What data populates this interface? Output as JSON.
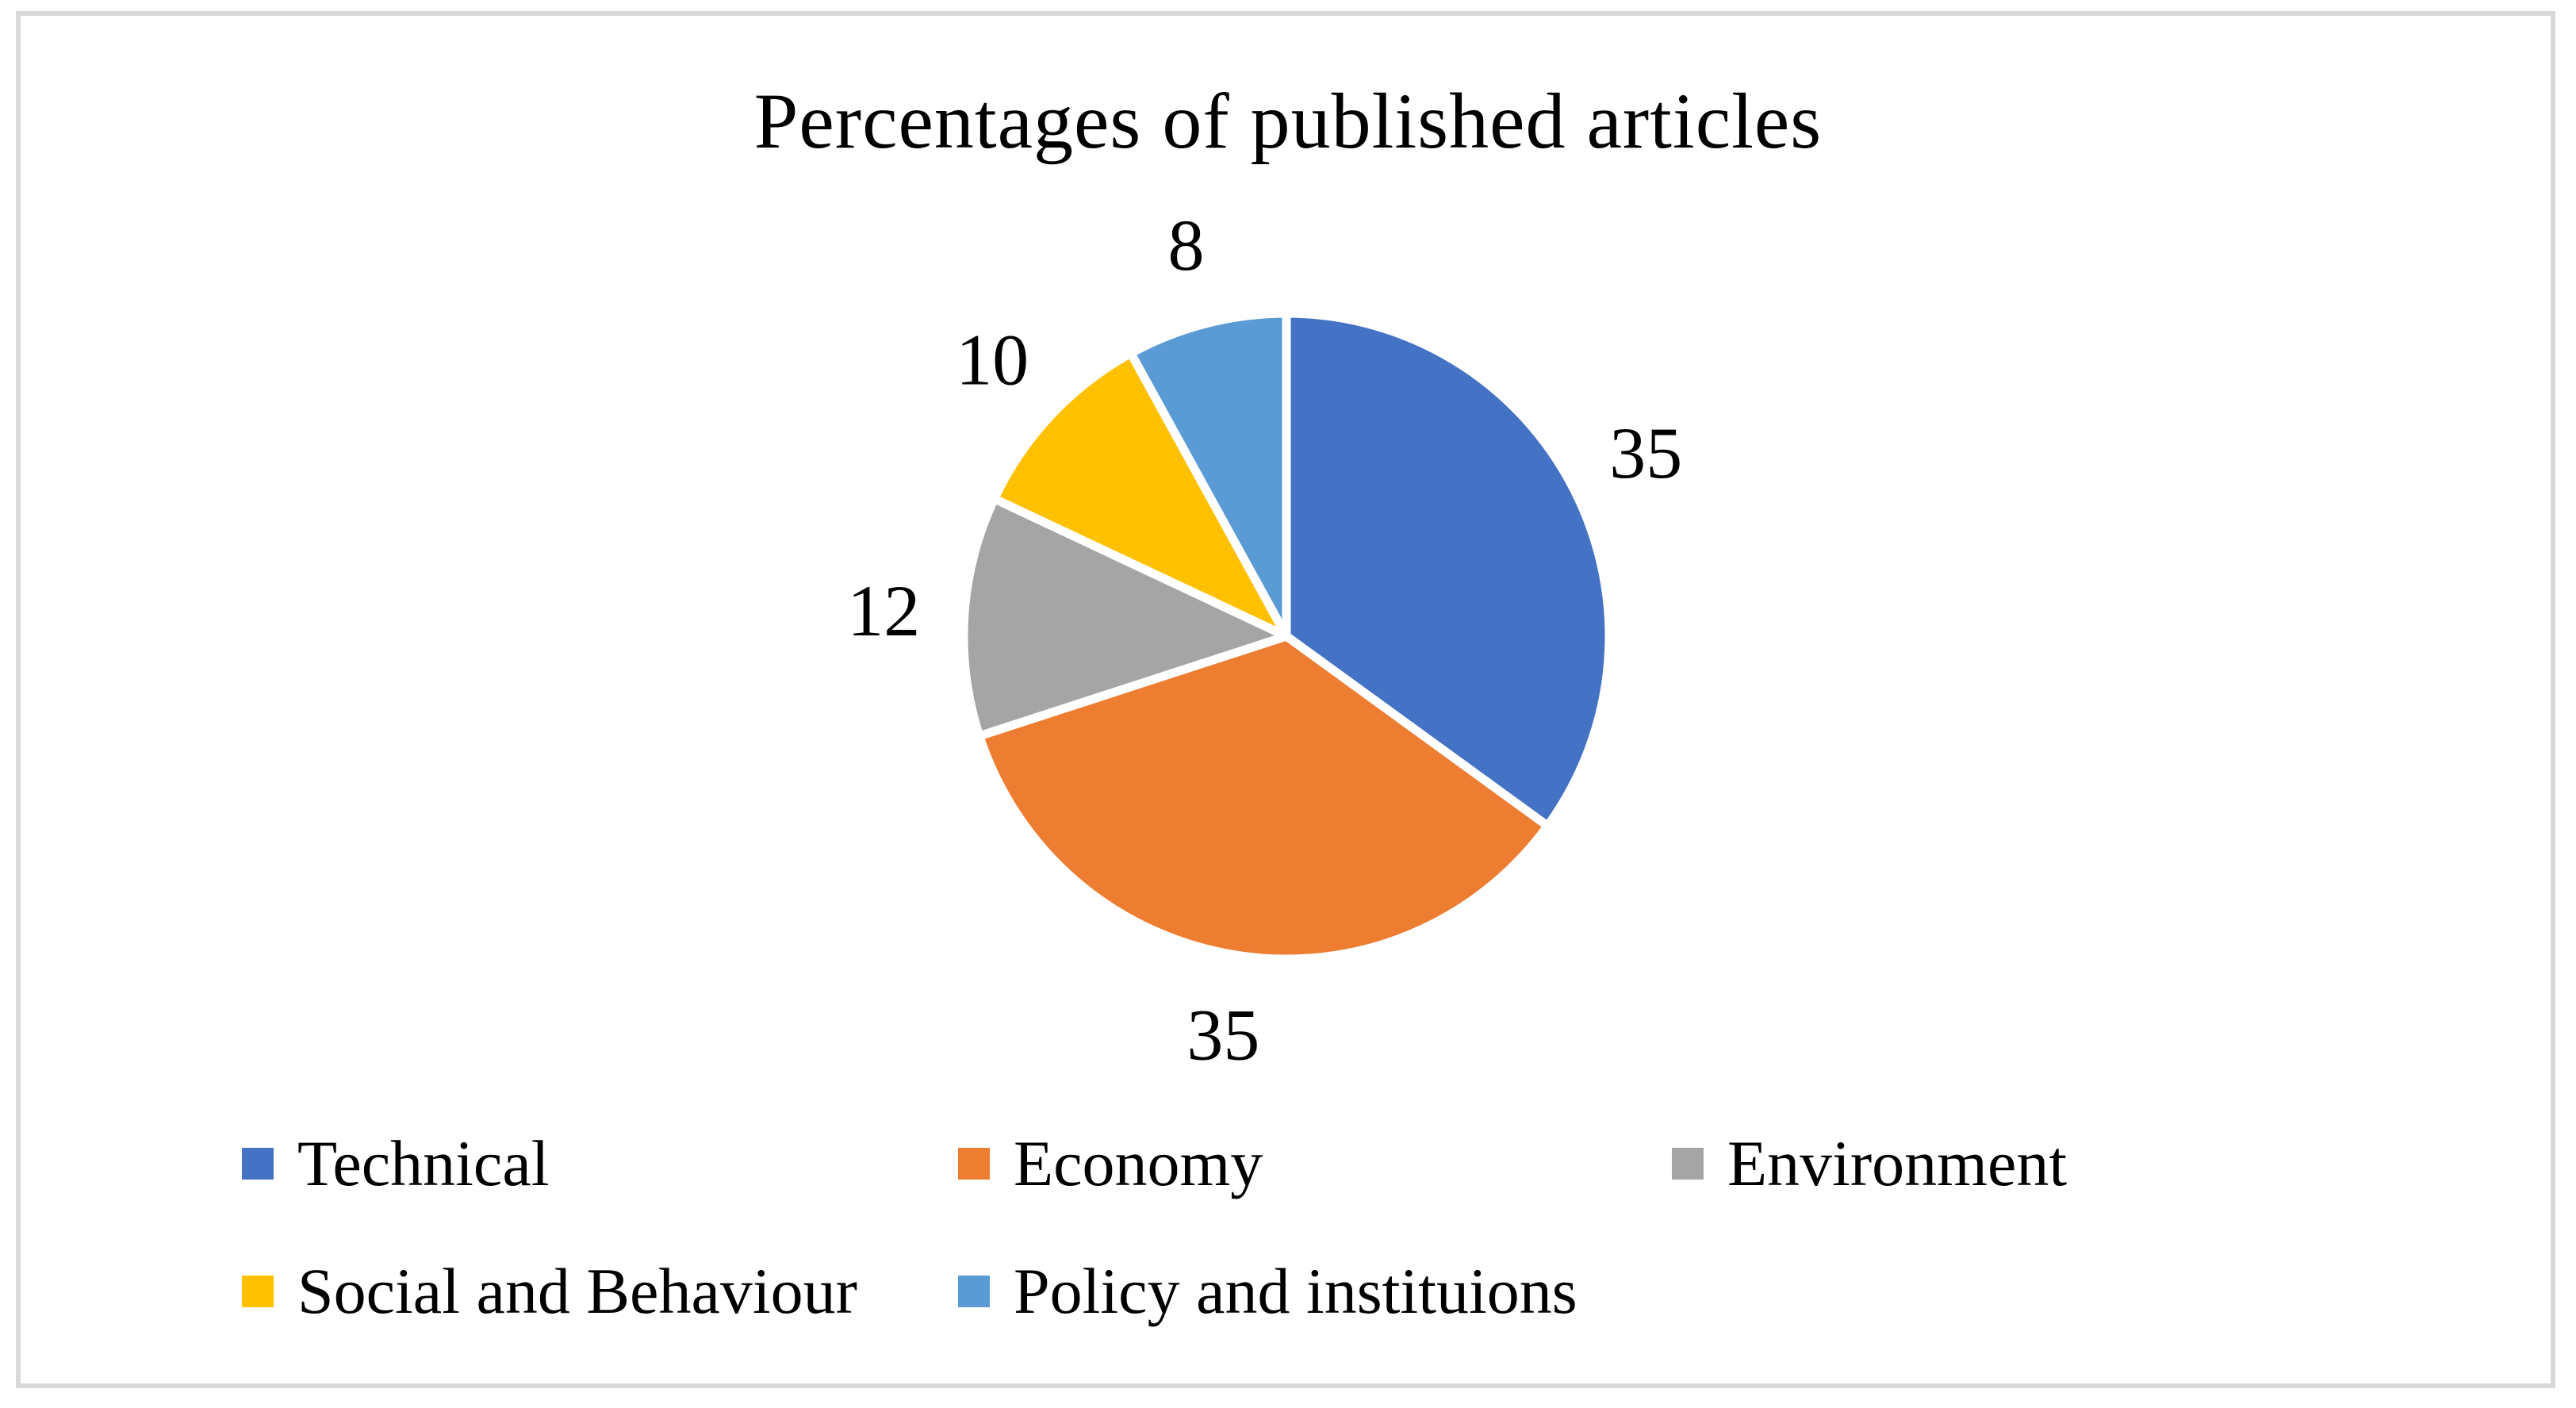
{
  "figure": {
    "background": "#ffffff",
    "frame_color": "#d9d9d9"
  },
  "chart_data": {
    "type": "pie",
    "title": "Percentages of published articles",
    "categories": [
      "Technical",
      "Economy",
      "Environment",
      "Social and Behaviour",
      "Policy and instituions"
    ],
    "values": [
      35,
      35,
      12,
      10,
      8
    ],
    "data_labels": [
      "35",
      "35",
      "12",
      "10",
      "8"
    ],
    "colors": [
      "#4472c4",
      "#ed7d31",
      "#a5a5a5",
      "#ffc000",
      "#5b9bd5"
    ],
    "start_angle_deg": 0,
    "direction": "clockwise",
    "label_position": "outside-end",
    "legend_position": "bottom",
    "text_color": "#000000"
  }
}
